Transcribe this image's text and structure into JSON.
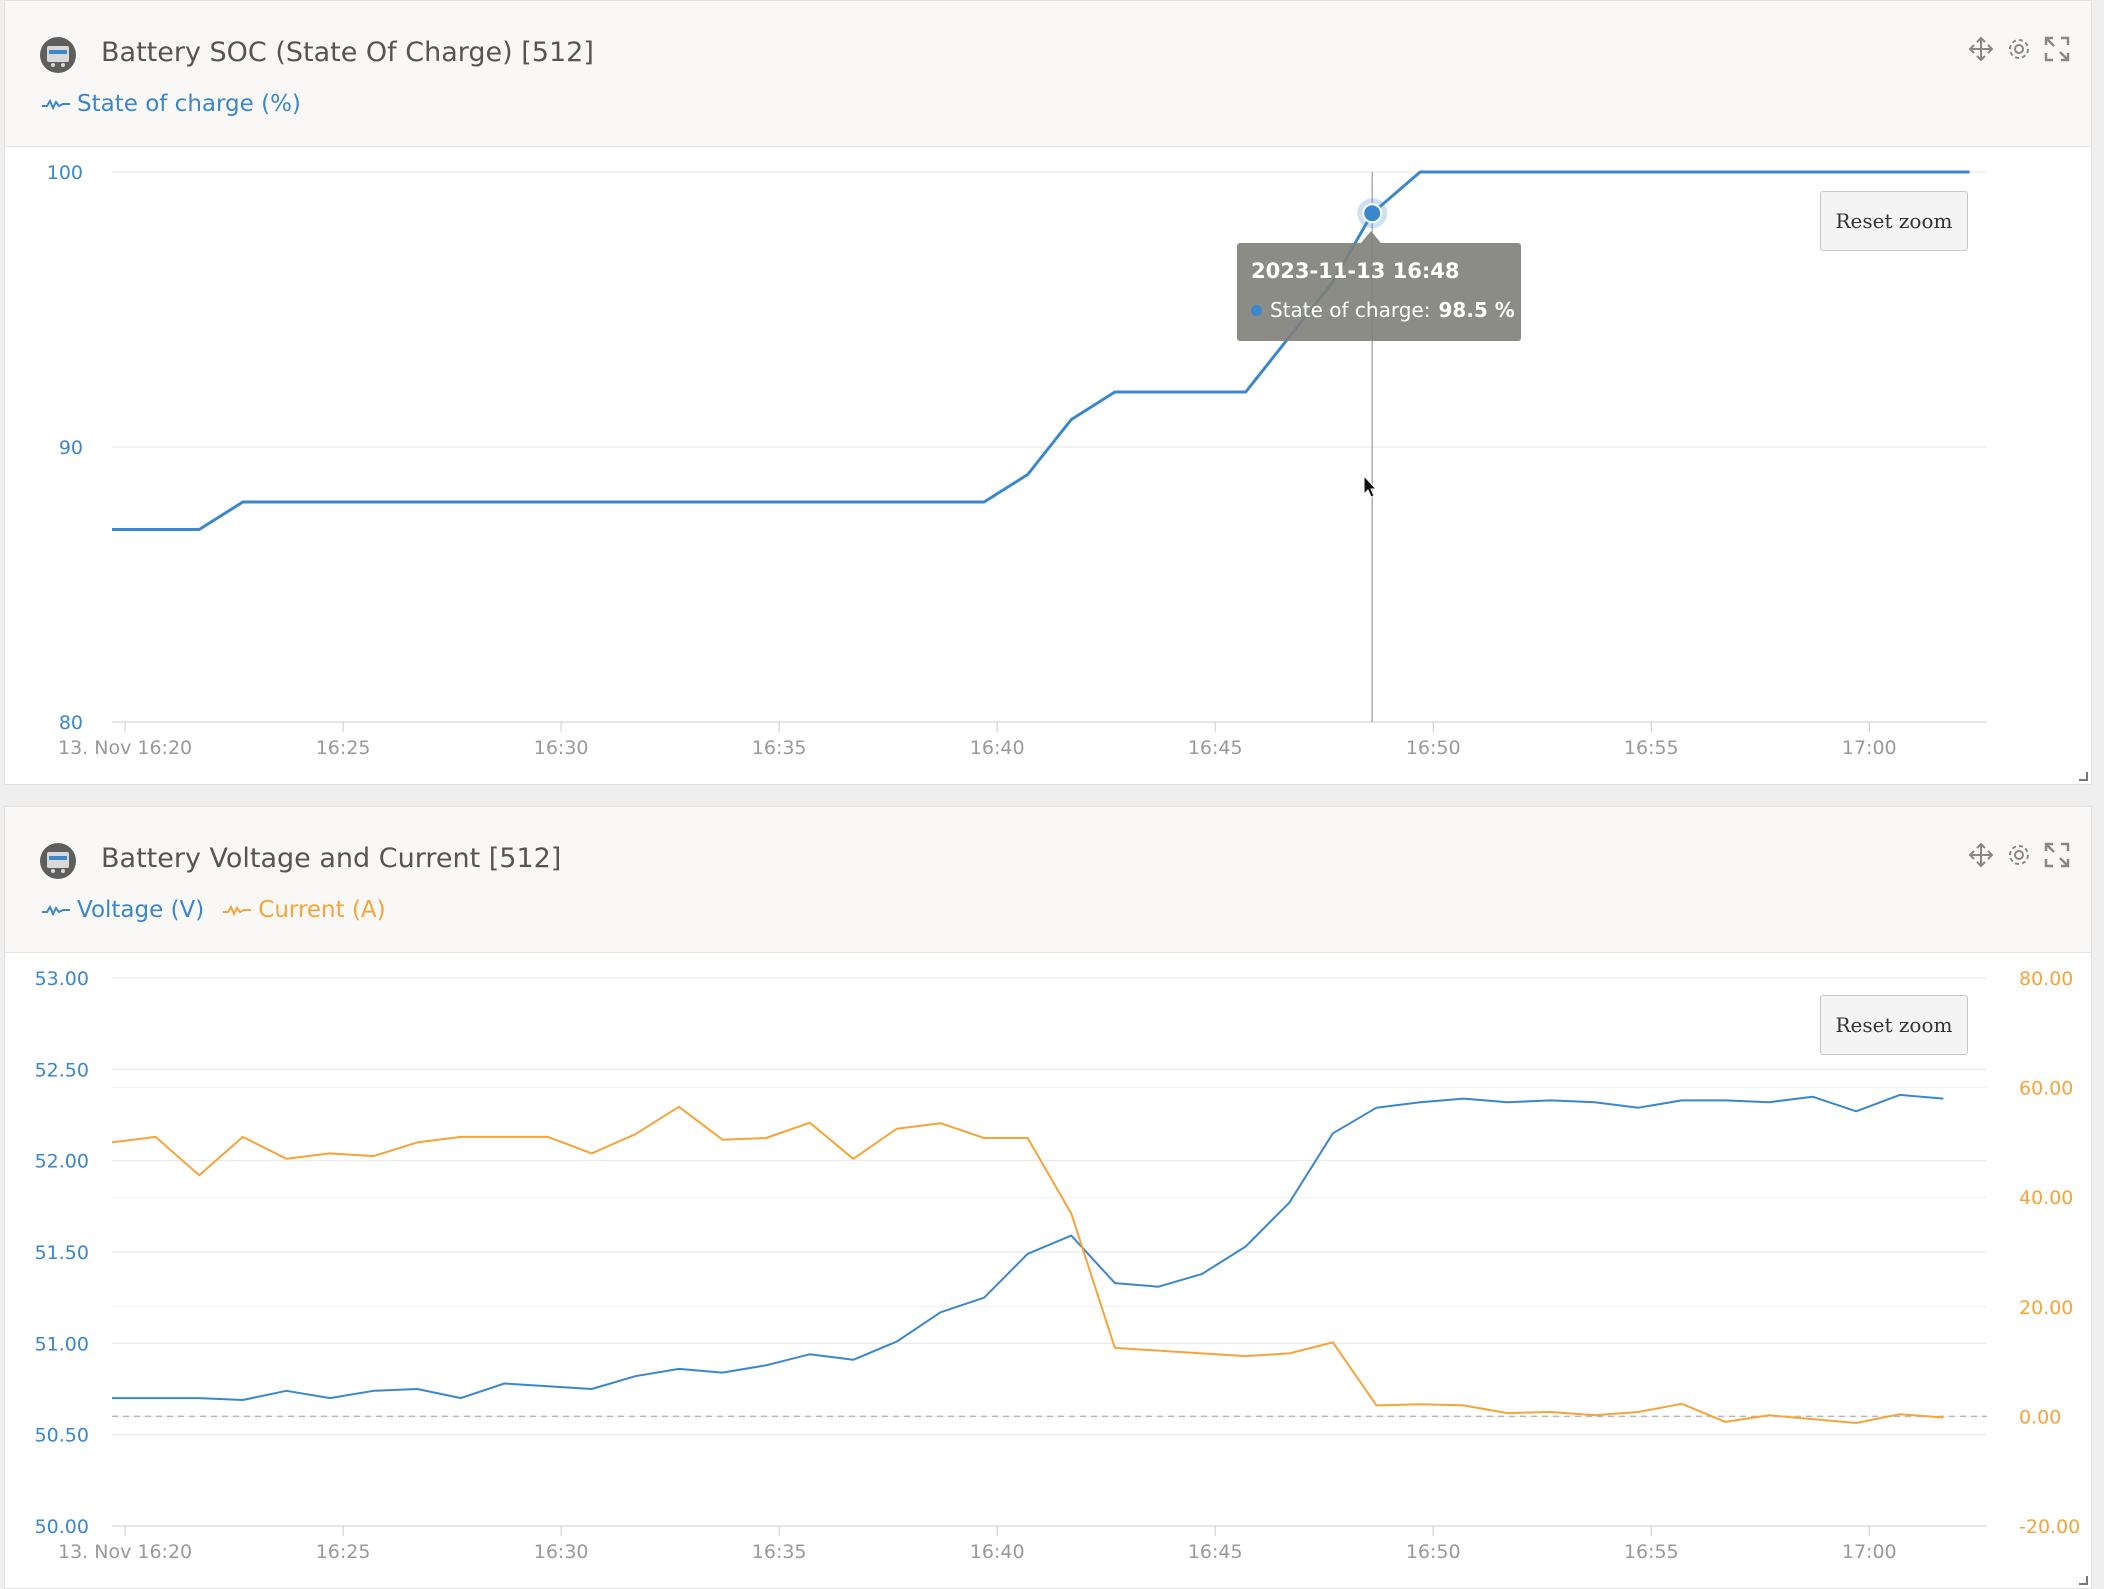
{
  "colors": {
    "blue": "#3b87cc",
    "orange": "#f5a43a",
    "grid": "#e6e6e6",
    "axis_text": "#999999"
  },
  "panels": [
    {
      "title": "Battery SOC (State Of Charge) [512]",
      "legend": [
        "State of charge (%)"
      ],
      "reset_label": "Reset zoom",
      "tooltip": {
        "title": "2023-11-13 16:48",
        "series": "State of charge",
        "value": "98.5 %"
      }
    },
    {
      "title": "Battery Voltage and Current [512]",
      "legend": [
        "Voltage (V)",
        "Current (A)"
      ],
      "reset_label": "Reset zoom"
    }
  ],
  "chart_data": [
    {
      "type": "line",
      "title": "Battery SOC (State Of Charge) [512]",
      "x_unit": "minutes after 16:20 on 13 Nov",
      "x_ticks": [
        "13. Nov 16:20",
        "16:25",
        "16:30",
        "16:35",
        "16:40",
        "16:45",
        "16:50",
        "16:55",
        "17:00"
      ],
      "xlim": [
        -0.3,
        42.7
      ],
      "ylim": [
        80,
        100
      ],
      "y_ticks": [
        "100",
        "90",
        "80"
      ],
      "y_tick_values": [
        100,
        90,
        80
      ],
      "crosshair_x": 28.6,
      "highlight": {
        "x": 28.6,
        "y": 98.5
      },
      "series": [
        {
          "name": "State of charge (%)",
          "color": "#3b87cc",
          "x": [
            -0.3,
            1.7,
            2.7,
            19.7,
            20.7,
            21.7,
            22.7,
            25.7,
            26.7,
            27.7,
            28.6,
            29.7,
            42.3
          ],
          "y": [
            87,
            87,
            88,
            88,
            89,
            91,
            92,
            92,
            94,
            96,
            98.5,
            100,
            100
          ]
        }
      ]
    },
    {
      "type": "line",
      "title": "Battery Voltage and Current [512]",
      "x_unit": "minutes after 16:20 on 13 Nov",
      "x_ticks": [
        "13. Nov 16:20",
        "16:25",
        "16:30",
        "16:35",
        "16:40",
        "16:45",
        "16:50",
        "16:55",
        "17:00"
      ],
      "xlim": [
        -0.3,
        42.7
      ],
      "ylim_left": [
        50,
        53
      ],
      "ylim_right": [
        -20,
        80
      ],
      "y_ticks_left": [
        "53.00",
        "52.50",
        "52.00",
        "51.50",
        "51.00",
        "50.50",
        "50.00"
      ],
      "y_tick_values_left": [
        53,
        52.5,
        52,
        51.5,
        51,
        50.5,
        50
      ],
      "y_ticks_right": [
        "80.00",
        "60.00",
        "40.00",
        "20.00",
        "0.00",
        "-20.00"
      ],
      "y_tick_values_right": [
        80,
        60,
        40,
        20,
        0,
        -20
      ],
      "zero_line_right": 0,
      "series": [
        {
          "name": "Voltage (V)",
          "color": "#3b87cc",
          "axis": "left",
          "x": [
            -0.3,
            1.7,
            2.7,
            3.7,
            4.7,
            5.7,
            6.7,
            7.7,
            8.7,
            10.7,
            11.7,
            12.7,
            13.7,
            14.7,
            15.7,
            16.7,
            17.7,
            18.7,
            19.7,
            20.7,
            21.7,
            22.7,
            23.7,
            24.7,
            25.7,
            26.7,
            27.7,
            28.7,
            29.7,
            30.7,
            31.7,
            32.7,
            33.7,
            34.7,
            35.7,
            36.7,
            37.7,
            38.7,
            39.7,
            40.7,
            41.7
          ],
          "y": [
            50.7,
            50.7,
            50.69,
            50.74,
            50.7,
            50.74,
            50.75,
            50.7,
            50.78,
            50.75,
            50.82,
            50.86,
            50.84,
            50.88,
            50.94,
            50.91,
            51.01,
            51.17,
            51.25,
            51.49,
            51.59,
            51.33,
            51.31,
            51.38,
            51.53,
            51.77,
            52.15,
            52.29,
            52.32,
            52.34,
            52.32,
            52.33,
            52.32,
            52.29,
            52.33,
            52.33,
            52.32,
            52.35,
            52.27,
            52.36,
            52.34
          ]
        },
        {
          "name": "Current (A)",
          "color": "#f5a43a",
          "axis": "right",
          "x": [
            -0.3,
            0.7,
            1.7,
            2.7,
            3.7,
            4.7,
            5.7,
            6.7,
            7.7,
            9.7,
            10.7,
            11.7,
            12.7,
            13.7,
            14.7,
            15.7,
            16.7,
            17.7,
            18.7,
            19.7,
            20.7,
            21.7,
            22.7,
            23.7,
            24.7,
            25.7,
            26.7,
            27.7,
            28.7,
            29.7,
            30.7,
            31.7,
            32.7,
            33.7,
            34.7,
            35.7,
            36.7,
            37.7,
            38.7,
            39.7,
            40.7,
            41.7
          ],
          "y": [
            50,
            51,
            44,
            51,
            47,
            48,
            47.5,
            50,
            51,
            51,
            48,
            51.5,
            56.5,
            50.5,
            50.8,
            53.6,
            47,
            52.5,
            53.5,
            50.8,
            50.8,
            37,
            12.5,
            12,
            11.5,
            11,
            11.5,
            13.5,
            2,
            2.2,
            2,
            0.6,
            0.8,
            0.2,
            0.8,
            2.3,
            -1,
            0.2,
            -0.5,
            -1.2,
            0.4,
            -0.2
          ]
        }
      ]
    }
  ]
}
